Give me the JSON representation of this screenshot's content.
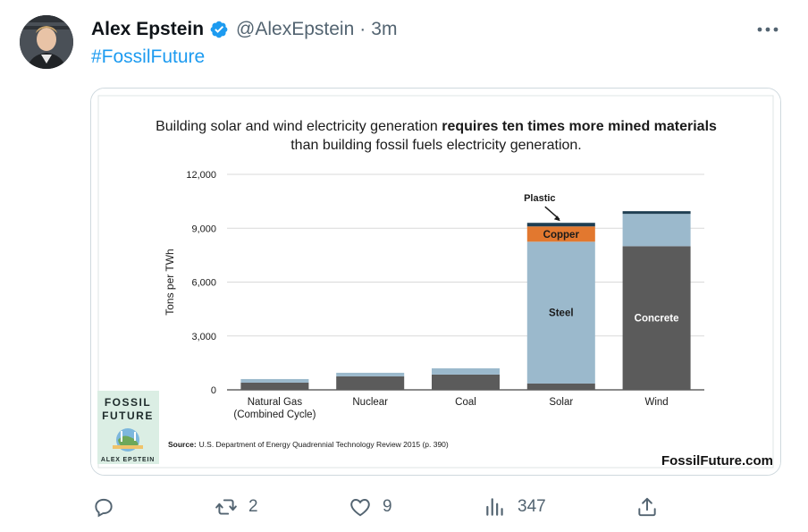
{
  "tweet": {
    "author_name": "Alex Epstein",
    "handle": "@AlexEpstein",
    "separator": "·",
    "time": "3m",
    "hashtag": "#FossilFuture",
    "verified": true
  },
  "actions": {
    "reply": {
      "icon": "reply-icon",
      "count": ""
    },
    "retweet": {
      "icon": "retweet-icon",
      "count": "2"
    },
    "like": {
      "icon": "heart-icon",
      "count": "9"
    },
    "views": {
      "icon": "views-icon",
      "count": "347"
    },
    "share": {
      "icon": "share-icon",
      "count": ""
    }
  },
  "media": {
    "book_cover": {
      "title_line1": "FOSSIL",
      "title_line2": "FUTURE",
      "author": "ALEX EPSTEIN"
    },
    "source_label": "Source:",
    "source_text": "U.S. Department of Energy Quadrennial Technology Review 2015 (p. 390)",
    "website": "FossilFuture.com"
  },
  "colors": {
    "accent": "#1d9bf0",
    "muted": "#536471",
    "concrete": "#5b5b5b",
    "steel": "#9bb9cc",
    "copper": "#e2782f",
    "plastic": "#1f3e52"
  },
  "chart_data": {
    "type": "bar",
    "stacked": true,
    "title_normal": "Building solar and wind electricity generation ",
    "title_bold": "requires ten times more mined materials",
    "title_line2": "than building fossil fuels electricity generation.",
    "ylabel": "Tons per TWh",
    "xlabel": "",
    "ylim": [
      0,
      12000
    ],
    "yticks": [
      "0",
      "3,000",
      "6,000",
      "9,000",
      "12,000"
    ],
    "ytick_values": [
      0,
      3000,
      6000,
      9000,
      12000
    ],
    "categories": [
      "Natural Gas\n(Combined Cycle)",
      "Nuclear",
      "Coal",
      "Solar",
      "Wind"
    ],
    "series": [
      {
        "name": "Concrete",
        "values": [
          400,
          750,
          850,
          350,
          8000
        ]
      },
      {
        "name": "Steel",
        "values": [
          200,
          200,
          350,
          7900,
          1800
        ]
      },
      {
        "name": "Copper",
        "values": [
          0,
          0,
          0,
          850,
          0
        ]
      },
      {
        "name": "Plastic",
        "values": [
          0,
          0,
          0,
          200,
          150
        ]
      }
    ],
    "annotations": [
      {
        "text": "Plastic",
        "category": "Solar"
      },
      {
        "text": "Copper",
        "category": "Solar"
      },
      {
        "text": "Steel",
        "category": "Solar"
      },
      {
        "text": "Concrete",
        "category": "Wind"
      }
    ],
    "grid": true,
    "legend": "none"
  }
}
